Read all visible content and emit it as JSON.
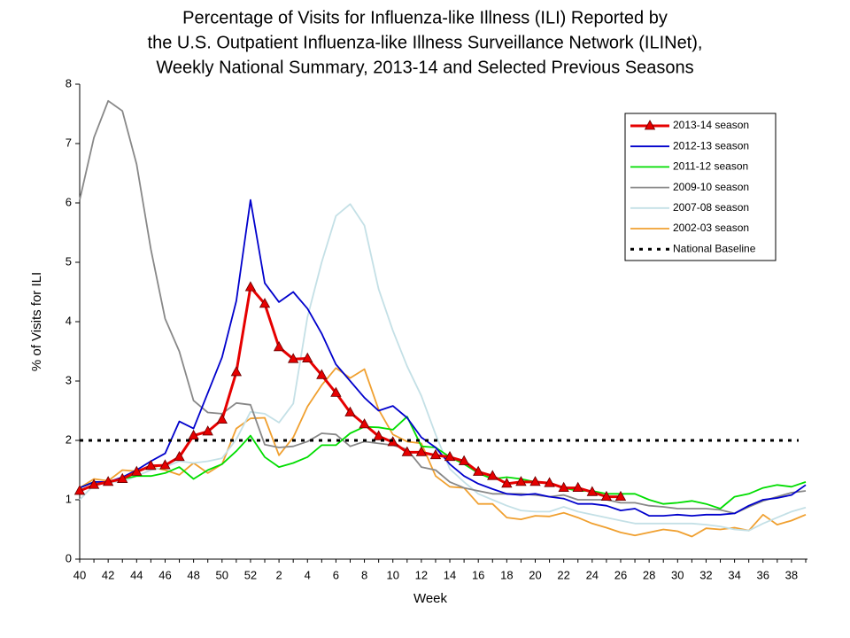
{
  "chart_data": {
    "type": "line",
    "title": [
      "Percentage of Visits for Influenza-like Illness (ILI) Reported by",
      "the U.S. Outpatient Influenza-like Illness Surveillance Network (ILINet),",
      "Weekly National Summary, 2013-14 and Selected Previous Seasons"
    ],
    "x_label": "Week",
    "y_label": "% of Visits for ILI",
    "categories": [
      "40",
      null,
      "42",
      null,
      "44",
      null,
      "46",
      null,
      "48",
      null,
      "50",
      null,
      "52",
      null,
      "2",
      null,
      "4",
      null,
      "6",
      null,
      "8",
      null,
      "10",
      null,
      "12",
      null,
      "14",
      null,
      "16",
      null,
      "18",
      null,
      "20",
      null,
      "22",
      null,
      "24",
      null,
      "26",
      null,
      "28",
      null,
      "30",
      null,
      "32",
      null,
      "34",
      null,
      "36",
      null,
      "38",
      null
    ],
    "ylim": [
      0,
      8
    ],
    "yticks": [
      0,
      1,
      2,
      3,
      4,
      5,
      6,
      7,
      8
    ],
    "legend": "upper right",
    "series": [
      {
        "name": "2013-14 season",
        "color": "#e60000",
        "marker": "triangle",
        "values": [
          1.15,
          1.25,
          1.3,
          1.35,
          1.47,
          1.57,
          1.58,
          1.72,
          2.08,
          2.15,
          2.35,
          3.15,
          4.58,
          4.3,
          3.57,
          3.37,
          3.38,
          3.1,
          2.8,
          2.47,
          2.27,
          2.07,
          1.97,
          1.8,
          1.8,
          1.75,
          1.72,
          1.65,
          1.47,
          1.4,
          1.27,
          1.3,
          1.3,
          1.28,
          1.2,
          1.2,
          1.13,
          1.05,
          1.05,
          null,
          null,
          null,
          null,
          null,
          null,
          null,
          null,
          null,
          null,
          null,
          null,
          null
        ]
      },
      {
        "name": "2012-13 season",
        "color": "#0000cc",
        "values": [
          1.2,
          1.3,
          1.3,
          1.38,
          1.5,
          1.65,
          1.78,
          2.32,
          2.2,
          2.8,
          3.4,
          4.35,
          6.05,
          4.65,
          4.33,
          4.5,
          4.22,
          3.8,
          3.28,
          3.0,
          2.72,
          2.5,
          2.58,
          2.38,
          2.05,
          1.88,
          1.6,
          1.4,
          1.27,
          1.18,
          1.1,
          1.08,
          1.1,
          1.05,
          1.02,
          0.93,
          0.93,
          0.9,
          0.82,
          0.85,
          0.73,
          0.73,
          0.75,
          0.73,
          0.75,
          0.75,
          0.77,
          0.9,
          1.0,
          1.03,
          1.08,
          1.25
        ]
      },
      {
        "name": "2011-12 season",
        "color": "#00dd00",
        "values": [
          1.2,
          1.3,
          1.3,
          1.35,
          1.4,
          1.4,
          1.45,
          1.55,
          1.35,
          1.5,
          1.6,
          1.82,
          2.08,
          1.72,
          1.55,
          1.62,
          1.72,
          1.92,
          1.92,
          2.12,
          2.23,
          2.22,
          2.18,
          2.4,
          1.9,
          1.88,
          1.72,
          1.6,
          1.45,
          1.35,
          1.38,
          1.35,
          1.3,
          1.28,
          1.2,
          1.15,
          1.15,
          1.1,
          1.1,
          1.1,
          1.0,
          0.93,
          0.95,
          0.98,
          0.93,
          0.85,
          1.05,
          1.1,
          1.2,
          1.25,
          1.22,
          1.3
        ]
      },
      {
        "name": "2009-10 season",
        "color": "#888888",
        "values": [
          6.05,
          7.1,
          7.72,
          7.55,
          6.65,
          5.22,
          4.05,
          3.5,
          2.67,
          2.47,
          2.45,
          2.63,
          2.6,
          1.93,
          1.88,
          1.9,
          1.98,
          2.12,
          2.1,
          1.9,
          1.98,
          1.95,
          1.92,
          1.85,
          1.55,
          1.5,
          1.3,
          1.2,
          1.15,
          1.1,
          1.1,
          1.1,
          1.08,
          1.05,
          1.08,
          1.0,
          1.0,
          1.0,
          0.95,
          0.95,
          0.9,
          0.88,
          0.85,
          0.85,
          0.85,
          0.83,
          0.77,
          0.88,
          0.98,
          1.05,
          1.12,
          1.15
        ]
      },
      {
        "name": "2007-08 season",
        "color": "#c4e0e6",
        "values": [
          1.0,
          1.25,
          1.3,
          1.3,
          1.4,
          1.5,
          1.55,
          1.65,
          1.62,
          1.65,
          1.7,
          2.02,
          2.48,
          2.45,
          2.3,
          2.62,
          4.08,
          5.0,
          5.78,
          5.98,
          5.62,
          4.55,
          3.85,
          3.25,
          2.75,
          2.1,
          1.52,
          1.3,
          1.1,
          1.0,
          0.9,
          0.82,
          0.8,
          0.8,
          0.88,
          0.8,
          0.75,
          0.7,
          0.65,
          0.6,
          0.6,
          0.6,
          0.6,
          0.6,
          0.58,
          0.55,
          0.5,
          0.48,
          0.6,
          0.7,
          0.8,
          0.87
        ]
      },
      {
        "name": "2002-03 season",
        "color": "#f0a030",
        "values": [
          1.2,
          1.35,
          1.32,
          1.5,
          1.48,
          1.55,
          1.5,
          1.42,
          1.62,
          1.45,
          1.6,
          2.2,
          2.37,
          2.38,
          1.75,
          2.05,
          2.57,
          2.93,
          3.22,
          3.05,
          3.2,
          2.52,
          2.1,
          1.98,
          1.95,
          1.4,
          1.22,
          1.2,
          0.93,
          0.93,
          0.7,
          0.67,
          0.73,
          0.72,
          0.78,
          0.7,
          0.6,
          0.53,
          0.45,
          0.4,
          0.45,
          0.5,
          0.47,
          0.38,
          0.52,
          0.5,
          0.53,
          0.48,
          0.75,
          0.58,
          0.65,
          0.75
        ]
      }
    ],
    "baseline": {
      "name": "National Baseline",
      "value": 2,
      "color": "#000000"
    }
  }
}
